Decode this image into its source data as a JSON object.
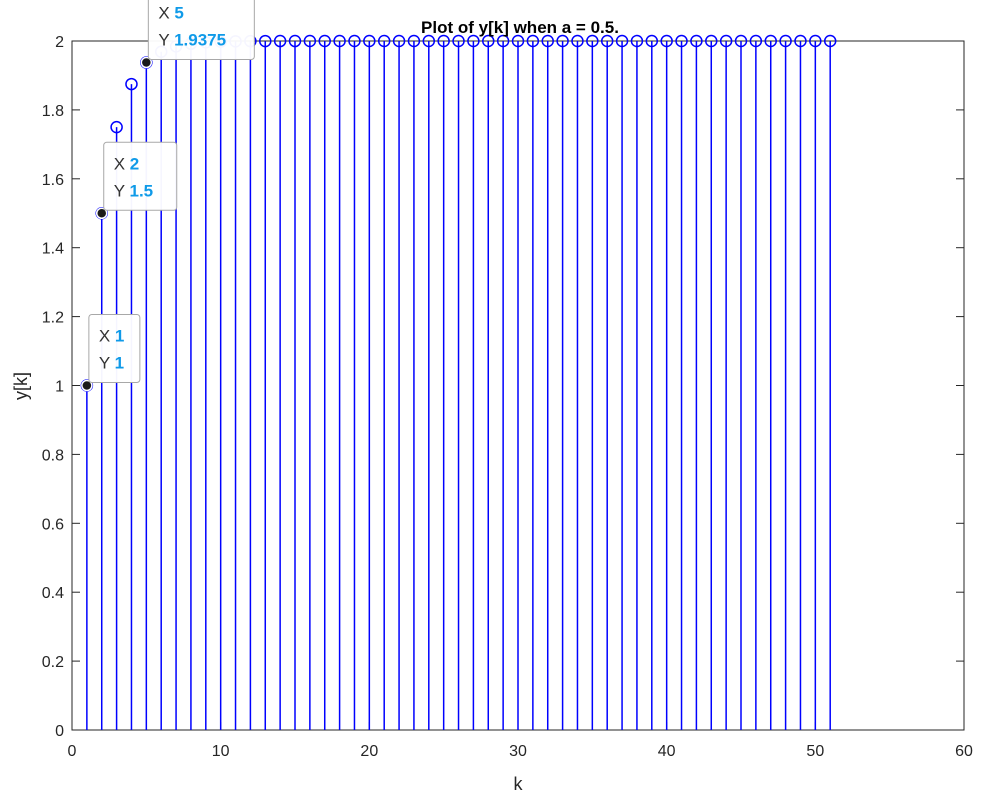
{
  "chart_data": {
    "type": "stem",
    "title": "Plot of y[k] when a = 0.5.",
    "xlabel": "k",
    "ylabel": "y[k]",
    "xlim": [
      0,
      60
    ],
    "ylim": [
      0,
      2
    ],
    "xticks": [
      0,
      10,
      20,
      30,
      40,
      50,
      60
    ],
    "xtick_labels": [
      "0",
      "10",
      "20",
      "30",
      "40",
      "50",
      "60"
    ],
    "yticks": [
      0,
      0.2,
      0.4,
      0.6,
      0.8,
      1,
      1.2,
      1.4,
      1.6,
      1.8,
      2
    ],
    "ytick_labels": [
      "0",
      "0.2",
      "0.4",
      "0.6",
      "0.8",
      "1",
      "1.2",
      "1.4",
      "1.6",
      "1.8",
      "2"
    ],
    "grid": false,
    "series": [
      {
        "color": "#0000ff",
        "marker": "circle",
        "x": [
          1,
          2,
          3,
          4,
          5,
          6,
          7,
          8,
          9,
          10,
          11,
          12,
          13,
          14,
          15,
          16,
          17,
          18,
          19,
          20,
          21,
          22,
          23,
          24,
          25,
          26,
          27,
          28,
          29,
          30,
          31,
          32,
          33,
          34,
          35,
          36,
          37,
          38,
          39,
          40,
          41,
          42,
          43,
          44,
          45,
          46,
          47,
          48,
          49,
          50,
          51
        ],
        "values": [
          1,
          1.5,
          1.75,
          1.875,
          1.9375,
          1.96875,
          1.984375,
          1.9921875,
          1.99609375,
          1.998046875,
          1.9990234375,
          1.99951171875,
          1.999755859375,
          1.9998779296875,
          1.99993896484375,
          2,
          2,
          2,
          2,
          2,
          2,
          2,
          2,
          2,
          2,
          2,
          2,
          2,
          2,
          2,
          2,
          2,
          2,
          2,
          2,
          2,
          2,
          2,
          2,
          2,
          2,
          2,
          2,
          2,
          2,
          2,
          2,
          2,
          2,
          2,
          2
        ]
      }
    ],
    "datatips": [
      {
        "x": 1,
        "y": 1,
        "x_label": "X",
        "y_label": "Y",
        "x_text": "1",
        "y_text": "1"
      },
      {
        "x": 2,
        "y": 1.5,
        "x_label": "X",
        "y_label": "Y",
        "x_text": "2",
        "y_text": "1.5"
      },
      {
        "x": 5,
        "y": 1.9375,
        "x_label": "X",
        "y_label": "Y",
        "x_text": "5",
        "y_text": "1.9375"
      }
    ]
  }
}
